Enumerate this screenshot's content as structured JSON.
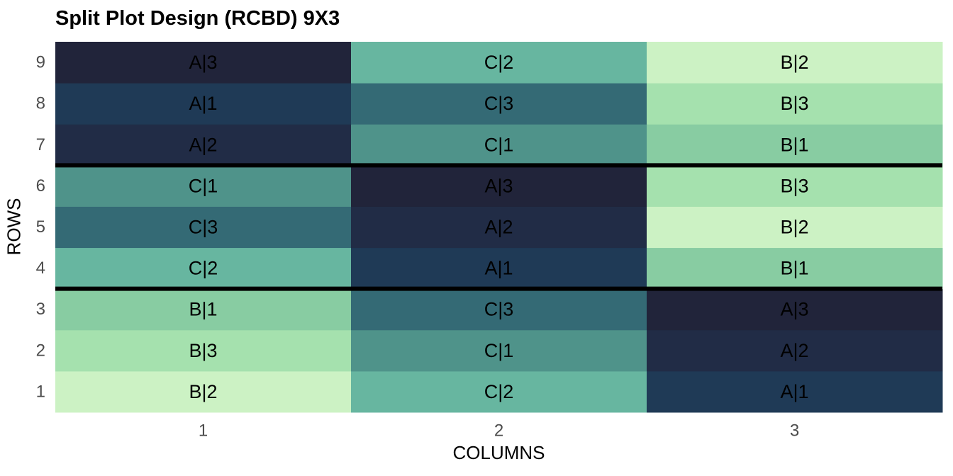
{
  "chart_data": {
    "type": "heatmap",
    "title": "Split Plot Design (RCBD) 9X3",
    "xlabel": "COLUMNS",
    "ylabel": "ROWS",
    "x_ticks": [
      "1",
      "2",
      "3"
    ],
    "y_ticks": [
      "1",
      "2",
      "3",
      "4",
      "5",
      "6",
      "7",
      "8",
      "9"
    ],
    "block_boundaries_after_rows": [
      3,
      6
    ],
    "cells": [
      {
        "row": 1,
        "col": 1,
        "label": "B|2",
        "treatment": "B2"
      },
      {
        "row": 1,
        "col": 2,
        "label": "C|2",
        "treatment": "C2"
      },
      {
        "row": 1,
        "col": 3,
        "label": "A|1",
        "treatment": "A1"
      },
      {
        "row": 2,
        "col": 1,
        "label": "B|3",
        "treatment": "B3"
      },
      {
        "row": 2,
        "col": 2,
        "label": "C|1",
        "treatment": "C1"
      },
      {
        "row": 2,
        "col": 3,
        "label": "A|2",
        "treatment": "A2"
      },
      {
        "row": 3,
        "col": 1,
        "label": "B|1",
        "treatment": "B1"
      },
      {
        "row": 3,
        "col": 2,
        "label": "C|3",
        "treatment": "C3"
      },
      {
        "row": 3,
        "col": 3,
        "label": "A|3",
        "treatment": "A3"
      },
      {
        "row": 4,
        "col": 1,
        "label": "C|2",
        "treatment": "C2"
      },
      {
        "row": 4,
        "col": 2,
        "label": "A|1",
        "treatment": "A1"
      },
      {
        "row": 4,
        "col": 3,
        "label": "B|1",
        "treatment": "B1"
      },
      {
        "row": 5,
        "col": 1,
        "label": "C|3",
        "treatment": "C3"
      },
      {
        "row": 5,
        "col": 2,
        "label": "A|2",
        "treatment": "A2"
      },
      {
        "row": 5,
        "col": 3,
        "label": "B|2",
        "treatment": "B2"
      },
      {
        "row": 6,
        "col": 1,
        "label": "C|1",
        "treatment": "C1"
      },
      {
        "row": 6,
        "col": 2,
        "label": "A|3",
        "treatment": "A3"
      },
      {
        "row": 6,
        "col": 3,
        "label": "B|3",
        "treatment": "B3"
      },
      {
        "row": 7,
        "col": 1,
        "label": "A|2",
        "treatment": "A2"
      },
      {
        "row": 7,
        "col": 2,
        "label": "C|1",
        "treatment": "C1"
      },
      {
        "row": 7,
        "col": 3,
        "label": "B|1",
        "treatment": "B1"
      },
      {
        "row": 8,
        "col": 1,
        "label": "A|1",
        "treatment": "A1"
      },
      {
        "row": 8,
        "col": 2,
        "label": "C|3",
        "treatment": "C3"
      },
      {
        "row": 8,
        "col": 3,
        "label": "B|3",
        "treatment": "B3"
      },
      {
        "row": 9,
        "col": 1,
        "label": "A|3",
        "treatment": "A3"
      },
      {
        "row": 9,
        "col": 2,
        "label": "C|2",
        "treatment": "C2"
      },
      {
        "row": 9,
        "col": 3,
        "label": "B|2",
        "treatment": "B2"
      }
    ],
    "colors": {
      "A1": "#1f3a56",
      "A2": "#212c46",
      "A3": "#21243a",
      "B1": "#88cca2",
      "B2": "#ccf2c4",
      "B3": "#a5e1ae",
      "C1": "#4f938a",
      "C2": "#67b6a0",
      "C3": "#346a75"
    },
    "grid": false,
    "legend": "none"
  }
}
